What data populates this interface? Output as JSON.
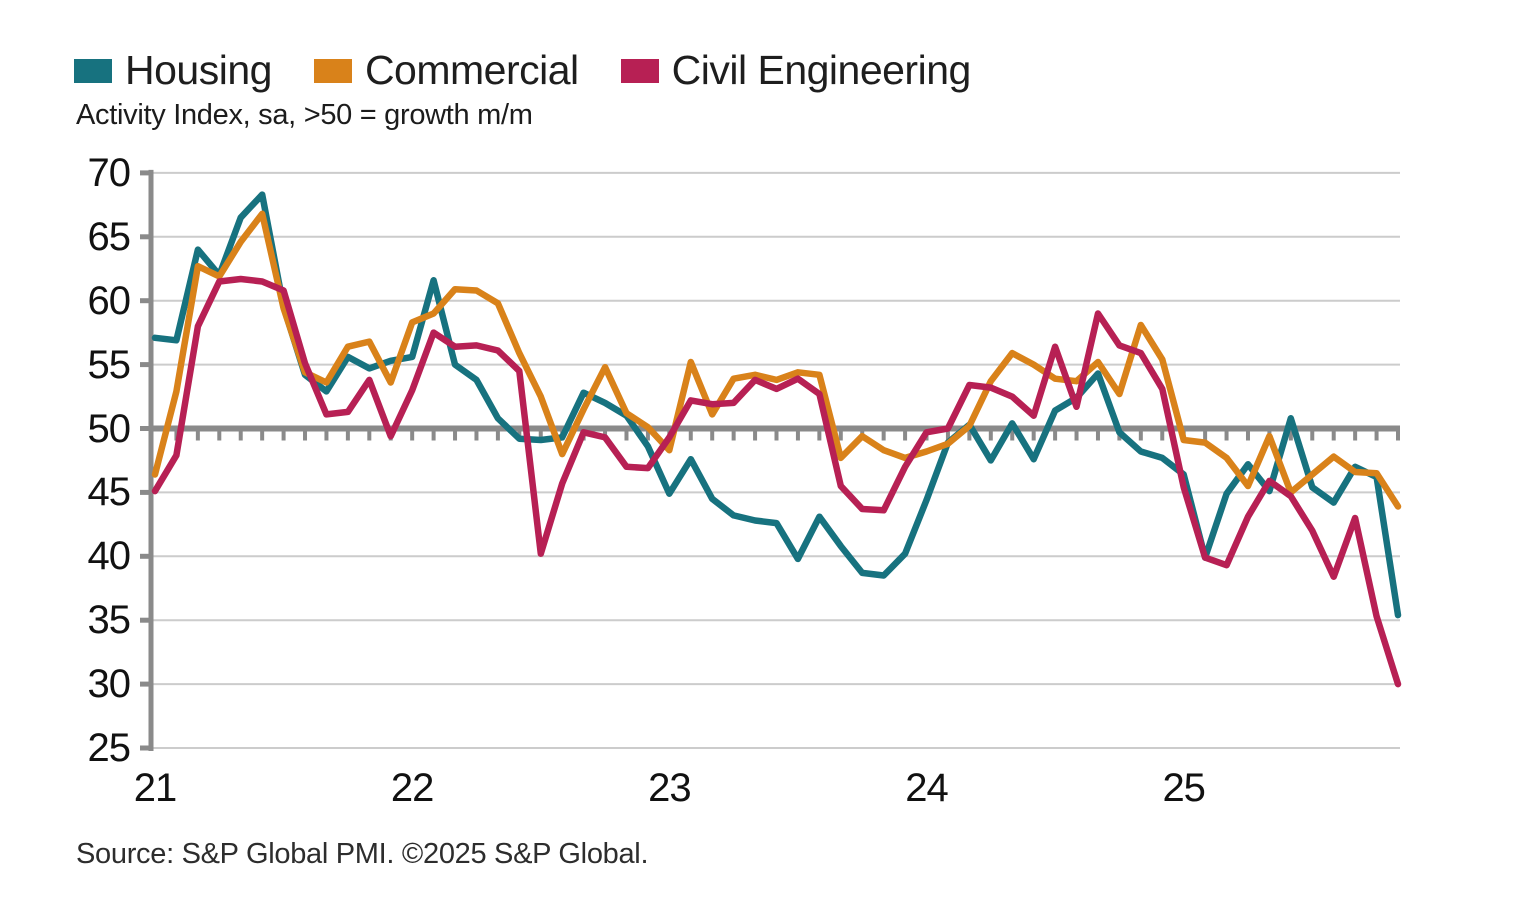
{
  "legend": [
    {
      "label": "Housing",
      "color": "#17727F"
    },
    {
      "label": "Commercial",
      "color": "#D9821A"
    },
    {
      "label": "Civil Engineering",
      "color": "#B72054"
    }
  ],
  "subtitle": "Activity Index, sa, >50 = growth m/m",
  "source": "Source: S&P Global PMI. ©2025 S&P Global.",
  "chart_data": {
    "type": "line",
    "title": "",
    "xlabel": "",
    "ylabel": "Activity Index, sa, >50 = growth m/m",
    "frequency": "monthly",
    "start_period": "2021-01",
    "end_period": "2025-11",
    "ylim": [
      25,
      70
    ],
    "yticks": [
      70,
      65,
      60,
      55,
      50,
      45,
      40,
      35,
      30,
      25
    ],
    "baseline_value": 50,
    "grid": "horizontal",
    "legend_position": "top-left",
    "x_year_labels": [
      "21",
      "22",
      "23",
      "24",
      "25"
    ],
    "x_year_start_indices": [
      0,
      12,
      24,
      36,
      48
    ],
    "axis_color": "#8A8A8A",
    "gridline_color": "#CCCCCC",
    "series": [
      {
        "name": "Housing",
        "color": "#17727F",
        "values": [
          57.1,
          56.9,
          64.0,
          62.0,
          66.5,
          68.3,
          59.5,
          54.2,
          52.9,
          55.6,
          54.7,
          55.3,
          55.6,
          61.6,
          55.0,
          53.8,
          50.8,
          49.2,
          49.1,
          49.3,
          52.8,
          52.0,
          51.0,
          48.6,
          44.9,
          47.6,
          44.5,
          43.2,
          42.8,
          42.6,
          39.8,
          43.1,
          40.8,
          38.7,
          38.5,
          40.2,
          44.4,
          48.9,
          50.3,
          47.5,
          50.4,
          47.6,
          51.4,
          52.4,
          54.3,
          49.7,
          48.2,
          47.7,
          46.4,
          39.9,
          44.9,
          47.2,
          45.1,
          50.8,
          45.4,
          44.2,
          47.0,
          46.2,
          35.4
        ]
      },
      {
        "name": "Commercial",
        "color": "#D9821A",
        "values": [
          46.4,
          52.9,
          62.7,
          61.9,
          64.6,
          66.8,
          59.4,
          54.4,
          53.6,
          56.4,
          56.8,
          53.6,
          58.3,
          59.0,
          60.9,
          60.8,
          59.8,
          55.9,
          52.5,
          48.0,
          51.5,
          54.8,
          51.2,
          50.1,
          48.3,
          55.2,
          51.1,
          53.9,
          54.2,
          53.8,
          54.4,
          54.2,
          47.7,
          49.4,
          48.3,
          47.7,
          48.2,
          48.8,
          50.2,
          53.7,
          55.9,
          55.0,
          53.9,
          53.7,
          55.2,
          52.7,
          58.1,
          55.4,
          49.1,
          48.9,
          47.7,
          45.5,
          49.4,
          45.0,
          46.4,
          47.8,
          46.6,
          46.5,
          43.9
        ]
      },
      {
        "name": "Civil Engineering",
        "color": "#B72054",
        "values": [
          45.1,
          47.9,
          58.0,
          61.5,
          61.7,
          61.5,
          60.8,
          55.1,
          51.1,
          51.3,
          53.8,
          49.4,
          53.0,
          57.5,
          56.4,
          56.5,
          56.1,
          54.5,
          40.2,
          45.7,
          49.7,
          49.3,
          47.0,
          46.9,
          49.3,
          52.2,
          51.9,
          52.0,
          53.8,
          53.1,
          53.9,
          52.7,
          45.5,
          43.7,
          43.6,
          47.0,
          49.7,
          50.0,
          53.4,
          53.2,
          52.5,
          51.0,
          56.4,
          51.7,
          59.0,
          56.5,
          55.9,
          53.1,
          45.4,
          39.9,
          39.3,
          43.1,
          45.9,
          44.7,
          42.0,
          38.4,
          43.0,
          35.3,
          30.0
        ]
      }
    ]
  }
}
